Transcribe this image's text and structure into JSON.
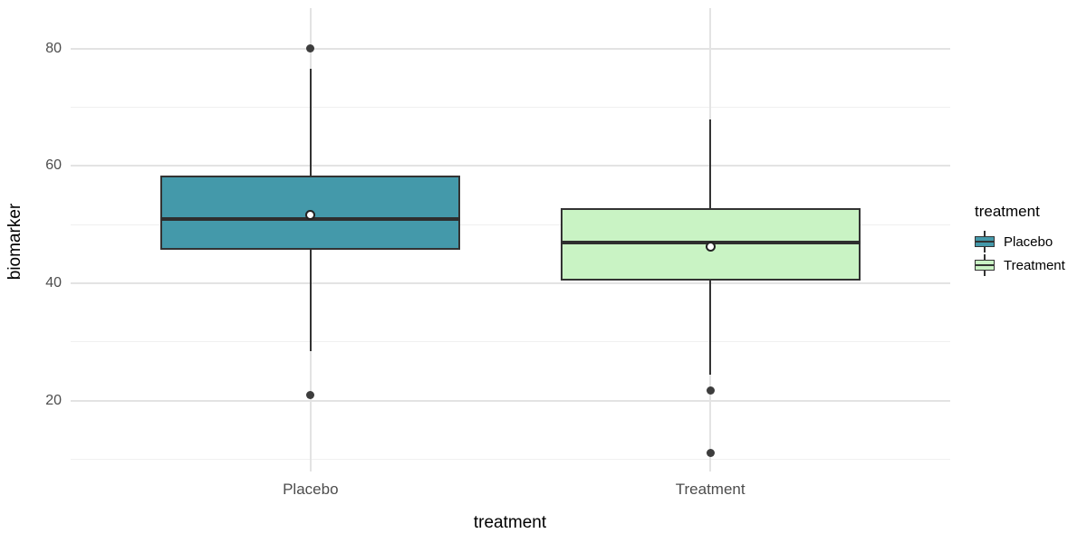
{
  "chart_data": {
    "type": "boxplot",
    "xlabel": "treatment",
    "ylabel": "biomarker",
    "x_categories": [
      "Placebo",
      "Treatment"
    ],
    "y_axis": {
      "ticks": [
        20,
        40,
        60,
        80
      ],
      "minor_ticks": [
        10,
        30,
        50,
        70
      ],
      "range": [
        7.9,
        86.9
      ]
    },
    "legend": {
      "title": "treatment",
      "position": "right"
    },
    "series": [
      {
        "name": "Placebo",
        "fill": "#4499aa",
        "whisker_low": 28.4,
        "q1": 45.7,
        "median": 50.9,
        "q3": 58.3,
        "whisker_high": 76.5,
        "mean": 51.7,
        "outliers": [
          80,
          21
        ]
      },
      {
        "name": "Treatment",
        "fill": "#c9f3c4",
        "whisker_low": 24.4,
        "q1": 40.4,
        "median": 47.0,
        "q3": 52.8,
        "whisker_high": 67.9,
        "mean": 46.2,
        "outliers": [
          21.7,
          11
        ]
      }
    ],
    "style": {
      "box_border": "#333333",
      "median_color": "#2e2e2e",
      "outlier_color": "#3d3d3d",
      "mean_fill": "#ffffff",
      "grid_major": "#e3e3e3",
      "grid_minor": "#f0f0f0",
      "axis_text": "#4d4d4d",
      "background": "#ffffff"
    }
  }
}
